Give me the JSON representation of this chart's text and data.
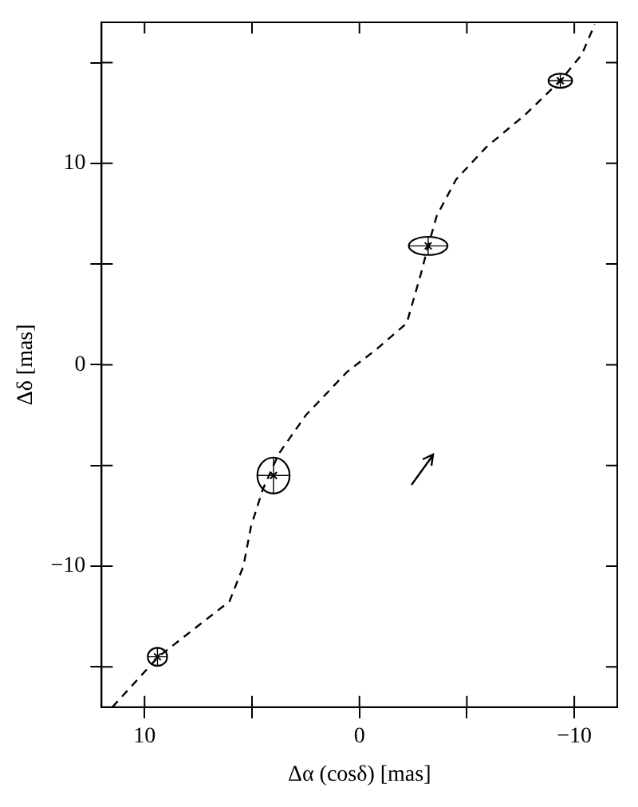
{
  "chart_data": {
    "type": "scatter",
    "xlabel": "Δα (cosδ) [mas]",
    "ylabel": "Δδ [mas]",
    "xlim": [
      12,
      -12
    ],
    "ylim": [
      -17,
      17
    ],
    "xticks": [
      10,
      {
        "value": 5,
        "label": null
      },
      0,
      {
        "value": -5,
        "label": null
      },
      -10
    ],
    "yticks": [
      {
        "value": -15,
        "label": null
      },
      -10,
      {
        "value": -5,
        "label": null
      },
      0,
      {
        "value": 5,
        "label": null
      },
      10,
      {
        "value": 15,
        "label": null
      }
    ],
    "grid": false,
    "legend": false,
    "series": [
      {
        "type": "line",
        "color": "#000000",
        "line_style": "dashed",
        "marker": "none",
        "x": [
          11.5,
          9.36,
          6.05,
          5.4,
          5.04,
          4.5,
          3.76,
          2.49,
          0.58,
          -0.82,
          -2.2,
          -2.85,
          -3.2,
          -3.6,
          -4.5,
          -5.9,
          -7.7,
          -9.35,
          -10.35,
          -10.95
        ],
        "values": [
          -17.0,
          -14.5,
          -11.75,
          -10.0,
          -8.0,
          -6.2,
          -4.43,
          -2.5,
          -0.36,
          0.79,
          2.06,
          4.47,
          5.9,
          7.4,
          9.2,
          10.8,
          12.4,
          14.1,
          15.4,
          16.9
        ]
      },
      {
        "type": "scatter",
        "color": "#000000",
        "marker": "cross",
        "x": [
          9.4,
          4.0,
          -3.2,
          -9.35
        ],
        "values": [
          -14.5,
          -5.5,
          5.9,
          14.1
        ],
        "xerrors": [
          0.45,
          0.75,
          0.9,
          0.55
        ],
        "errors": [
          0.45,
          0.9,
          0.45,
          0.35
        ]
      }
    ]
  }
}
